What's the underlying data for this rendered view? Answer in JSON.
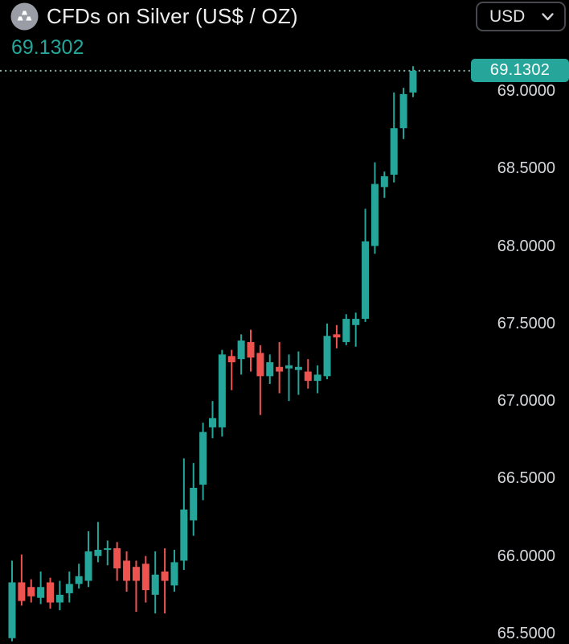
{
  "header": {
    "title": "CFDs on Silver (US$ / OZ)",
    "last_price": "69.1302",
    "symbol_icon": "silver-ingots-icon",
    "currency_selector": {
      "value": "USD"
    }
  },
  "chart_data": {
    "type": "candlestick",
    "title": "CFDs on Silver (US$ / OZ)",
    "last_price": 69.1302,
    "last_price_label": "69.1302",
    "grid": false,
    "x_axis": {
      "visible": false
    },
    "y_axis": {
      "side": "right",
      "min": 65.42,
      "max": 69.25,
      "ticks": [
        "69.0000",
        "68.5000",
        "68.0000",
        "67.5000",
        "67.0000",
        "66.5000",
        "66.0000",
        "65.5000"
      ]
    },
    "colors": {
      "up": "#26a69a",
      "down": "#ef5350",
      "background": "#000000",
      "axis_text": "#d5d7db",
      "title_text": "#ededed",
      "badge_bg": "#26a69a",
      "badge_text": "#ffffff",
      "price_line": "#87b5ad"
    },
    "candles": [
      {
        "o": 65.47,
        "h": 65.97,
        "l": 65.45,
        "c": 65.83
      },
      {
        "o": 65.83,
        "h": 66.01,
        "l": 65.68,
        "c": 65.71
      },
      {
        "o": 65.8,
        "h": 65.85,
        "l": 65.7,
        "c": 65.74
      },
      {
        "o": 65.73,
        "h": 65.9,
        "l": 65.69,
        "c": 65.8
      },
      {
        "o": 65.83,
        "h": 65.86,
        "l": 65.66,
        "c": 65.7
      },
      {
        "o": 65.7,
        "h": 65.84,
        "l": 65.65,
        "c": 65.75
      },
      {
        "o": 65.76,
        "h": 65.9,
        "l": 65.7,
        "c": 65.82
      },
      {
        "o": 65.82,
        "h": 65.95,
        "l": 65.79,
        "c": 65.87
      },
      {
        "o": 65.84,
        "h": 66.16,
        "l": 65.8,
        "c": 66.03
      },
      {
        "o": 66.0,
        "h": 66.22,
        "l": 65.96,
        "c": 66.04
      },
      {
        "o": 66.04,
        "h": 66.1,
        "l": 65.94,
        "c": 66.05
      },
      {
        "o": 66.05,
        "h": 66.09,
        "l": 65.84,
        "c": 65.92
      },
      {
        "o": 65.97,
        "h": 66.03,
        "l": 65.77,
        "c": 65.84
      },
      {
        "o": 65.93,
        "h": 65.97,
        "l": 65.64,
        "c": 65.84
      },
      {
        "o": 65.95,
        "h": 66.0,
        "l": 65.7,
        "c": 65.78
      },
      {
        "o": 65.75,
        "h": 66.03,
        "l": 65.63,
        "c": 65.88
      },
      {
        "o": 65.9,
        "h": 66.05,
        "l": 65.63,
        "c": 65.84
      },
      {
        "o": 65.81,
        "h": 66.04,
        "l": 65.77,
        "c": 65.96
      },
      {
        "o": 65.97,
        "h": 66.63,
        "l": 65.91,
        "c": 66.3
      },
      {
        "o": 66.23,
        "h": 66.6,
        "l": 66.13,
        "c": 66.44
      },
      {
        "o": 66.46,
        "h": 66.86,
        "l": 66.36,
        "c": 66.8
      },
      {
        "o": 66.83,
        "h": 67.0,
        "l": 66.76,
        "c": 66.89
      },
      {
        "o": 66.83,
        "h": 67.33,
        "l": 66.77,
        "c": 67.3
      },
      {
        "o": 67.29,
        "h": 67.33,
        "l": 67.07,
        "c": 67.25
      },
      {
        "o": 67.27,
        "h": 67.43,
        "l": 67.17,
        "c": 67.39
      },
      {
        "o": 67.38,
        "h": 67.46,
        "l": 67.19,
        "c": 67.28
      },
      {
        "o": 67.31,
        "h": 67.36,
        "l": 66.91,
        "c": 67.16
      },
      {
        "o": 67.16,
        "h": 67.3,
        "l": 67.11,
        "c": 67.25
      },
      {
        "o": 67.22,
        "h": 67.38,
        "l": 67.05,
        "c": 67.19
      },
      {
        "o": 67.21,
        "h": 67.3,
        "l": 67.0,
        "c": 67.23
      },
      {
        "o": 67.2,
        "h": 67.32,
        "l": 67.04,
        "c": 67.22
      },
      {
        "o": 67.19,
        "h": 67.27,
        "l": 67.08,
        "c": 67.13
      },
      {
        "o": 67.13,
        "h": 67.23,
        "l": 67.05,
        "c": 67.17
      },
      {
        "o": 67.16,
        "h": 67.5,
        "l": 67.14,
        "c": 67.42
      },
      {
        "o": 67.43,
        "h": 67.49,
        "l": 67.34,
        "c": 67.41
      },
      {
        "o": 67.38,
        "h": 67.56,
        "l": 67.36,
        "c": 67.53
      },
      {
        "o": 67.49,
        "h": 67.57,
        "l": 67.35,
        "c": 67.53
      },
      {
        "o": 67.53,
        "h": 68.24,
        "l": 67.51,
        "c": 68.03
      },
      {
        "o": 68.0,
        "h": 68.54,
        "l": 67.95,
        "c": 68.4
      },
      {
        "o": 68.38,
        "h": 68.48,
        "l": 68.31,
        "c": 68.45
      },
      {
        "o": 68.46,
        "h": 68.99,
        "l": 68.41,
        "c": 68.76
      },
      {
        "o": 68.76,
        "h": 69.02,
        "l": 68.69,
        "c": 68.98
      },
      {
        "o": 68.99,
        "h": 69.16,
        "l": 68.96,
        "c": 69.1302
      }
    ]
  }
}
